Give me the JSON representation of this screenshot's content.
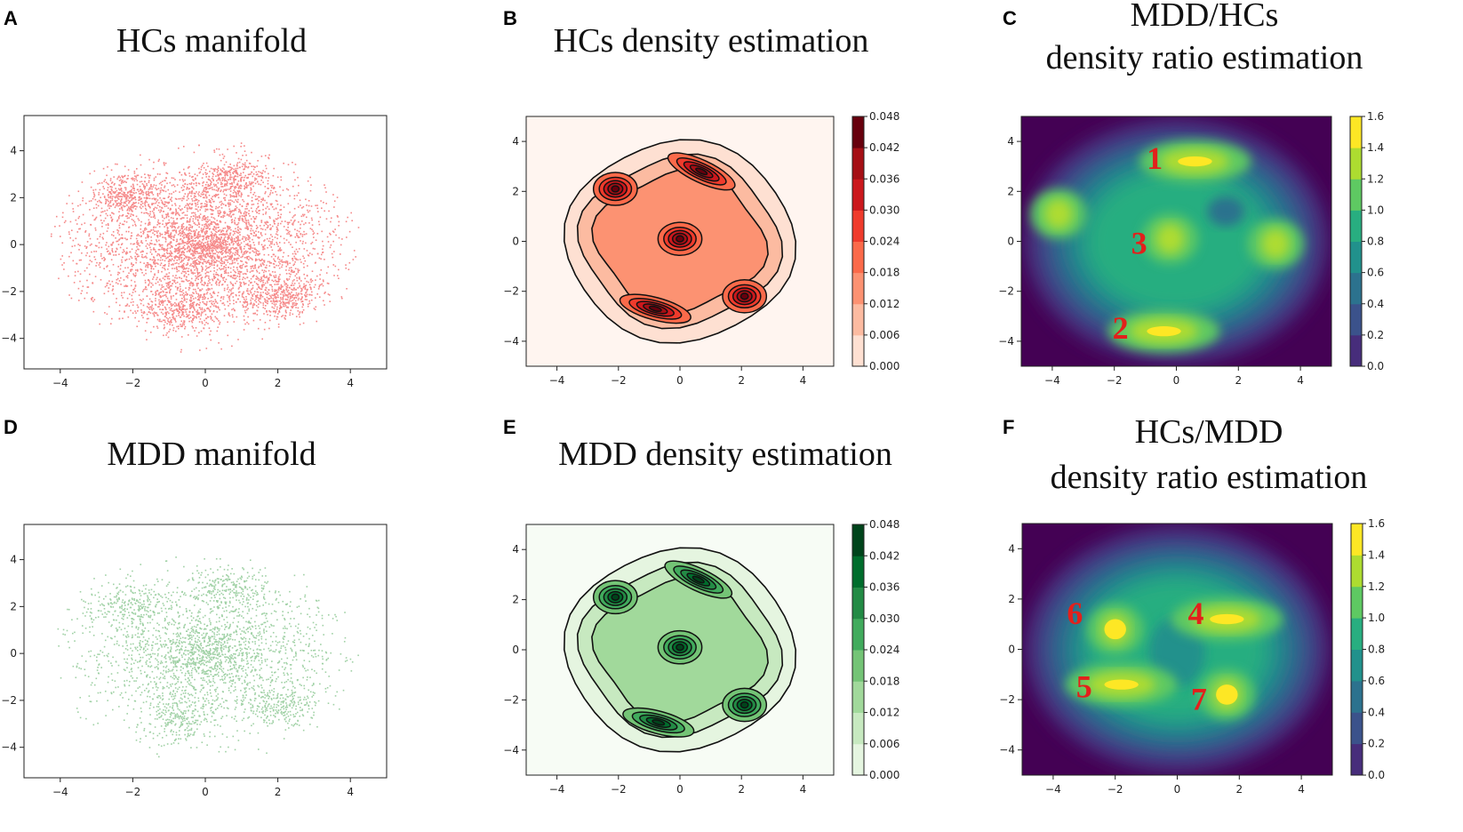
{
  "figure": {
    "panels": [
      {
        "id": "A",
        "title_lines": [
          "HCs manifold"
        ],
        "kind": "scatter",
        "color": "#ee2a2a"
      },
      {
        "id": "B",
        "title_lines": [
          "HCs density estimation"
        ],
        "kind": "density",
        "palette": [
          "#fff5f0",
          "#fee0d2",
          "#fcbba1",
          "#fc9272",
          "#fb6a4a",
          "#ef3b2c",
          "#cb181d",
          "#a50f15",
          "#67000d"
        ]
      },
      {
        "id": "C",
        "title_lines": [
          "MDD/HCs",
          "density ratio estimation"
        ],
        "kind": "ratio",
        "annotations": [
          "1",
          "2",
          "3"
        ]
      },
      {
        "id": "D",
        "title_lines": [
          "MDD manifold"
        ],
        "kind": "scatter",
        "color": "#2e9a3a"
      },
      {
        "id": "E",
        "title_lines": [
          "MDD density estimation"
        ],
        "kind": "density",
        "palette": [
          "#f7fcf5",
          "#e5f5e0",
          "#c7e9c0",
          "#a1d99b",
          "#74c476",
          "#41ab5d",
          "#238b45",
          "#006d2c",
          "#00441b"
        ]
      },
      {
        "id": "F",
        "title_lines": [
          "HCs/MDD",
          "density ratio estimation"
        ],
        "kind": "ratio",
        "annotations": [
          "4",
          "5",
          "6",
          "7"
        ]
      }
    ],
    "viridis": [
      "#440154",
      "#472d7b",
      "#3b528b",
      "#2c728e",
      "#21918c",
      "#28ae80",
      "#5ec962",
      "#addc30",
      "#fde725"
    ]
  },
  "chart_data": [
    {
      "panel": "A",
      "type": "scatter",
      "title": "HCs manifold",
      "xlim": [
        -5,
        5
      ],
      "ylim": [
        -5.3,
        5.5
      ],
      "xticks": [
        -4,
        -2,
        0,
        2,
        4
      ],
      "yticks": [
        4,
        2,
        0,
        -2,
        -4
      ],
      "dense_regions": [
        [
          -2.1,
          2.1
        ],
        [
          0.6,
          2.8
        ],
        [
          2.1,
          -2.2
        ],
        [
          -0.7,
          -2.7
        ],
        [
          0,
          0
        ]
      ]
    },
    {
      "panel": "B",
      "type": "heatmap",
      "title": "HCs density estimation",
      "xlim": [
        -5,
        5
      ],
      "ylim": [
        -5,
        5
      ],
      "xticks": [
        -4,
        -2,
        0,
        2,
        4
      ],
      "yticks": [
        4,
        2,
        0,
        -2,
        -4
      ],
      "colorbar_ticks": [
        "0.048",
        "0.042",
        "0.036",
        "0.030",
        "0.024",
        "0.018",
        "0.012",
        "0.006",
        "0.000"
      ],
      "peaks": [
        [
          -2.1,
          2.1
        ],
        [
          0.7,
          2.8
        ],
        [
          0,
          0.1
        ],
        [
          2.1,
          -2.2
        ],
        [
          -0.8,
          -2.7
        ]
      ]
    },
    {
      "panel": "C",
      "type": "heatmap",
      "title": "MDD/HCs density ratio estimation",
      "xlim": [
        -5,
        5
      ],
      "ylim": [
        -5,
        5
      ],
      "xticks": [
        -4,
        -2,
        0,
        2,
        4
      ],
      "yticks": [
        4,
        2,
        0,
        -2,
        -4
      ],
      "colorbar_ticks": [
        "1.6",
        "1.4",
        "1.2",
        "1.0",
        "0.8",
        "0.6",
        "0.4",
        "0.2",
        "0.0"
      ],
      "peaks": [
        [
          0.6,
          3.2
        ],
        [
          -0.4,
          -3.6
        ],
        [
          -0.2,
          0.1
        ],
        [
          -3.8,
          1.1
        ],
        [
          3.2,
          -0.1
        ]
      ]
    },
    {
      "panel": "D",
      "type": "scatter",
      "title": "MDD manifold",
      "xlim": [
        -5,
        5
      ],
      "ylim": [
        -5.3,
        5.5
      ],
      "xticks": [
        -4,
        -2,
        0,
        2,
        4
      ],
      "yticks": [
        4,
        2,
        0,
        -2,
        -4
      ],
      "dense_regions": [
        [
          -2.1,
          2.1
        ],
        [
          0.6,
          2.8
        ],
        [
          2.1,
          -2.2
        ],
        [
          -0.7,
          -2.7
        ],
        [
          0,
          0
        ]
      ]
    },
    {
      "panel": "E",
      "type": "heatmap",
      "title": "MDD density estimation",
      "xlim": [
        -5,
        5
      ],
      "ylim": [
        -5,
        5
      ],
      "xticks": [
        -4,
        -2,
        0,
        2,
        4
      ],
      "yticks": [
        4,
        2,
        0,
        -2,
        -4
      ],
      "colorbar_ticks": [
        "0.048",
        "0.042",
        "0.036",
        "0.030",
        "0.024",
        "0.018",
        "0.012",
        "0.006",
        "0.000"
      ],
      "peaks": [
        [
          -2.1,
          2.1
        ],
        [
          0.6,
          2.8
        ],
        [
          0,
          0.1
        ],
        [
          2.1,
          -2.2
        ],
        [
          -0.7,
          -2.9
        ]
      ]
    },
    {
      "panel": "F",
      "type": "heatmap",
      "title": "HCs/MDD density ratio estimation",
      "xlim": [
        -5,
        5
      ],
      "ylim": [
        -5,
        5
      ],
      "xticks": [
        -4,
        -2,
        0,
        2,
        4
      ],
      "yticks": [
        4,
        2,
        0,
        -2,
        -4
      ],
      "colorbar_ticks": [
        "1.6",
        "1.4",
        "1.2",
        "1.0",
        "0.8",
        "0.6",
        "0.4",
        "0.2",
        "0.0"
      ],
      "peaks": [
        [
          1.6,
          1.2
        ],
        [
          -1.8,
          -1.4
        ],
        [
          -2.0,
          0.8
        ],
        [
          1.6,
          -1.8
        ]
      ]
    }
  ]
}
